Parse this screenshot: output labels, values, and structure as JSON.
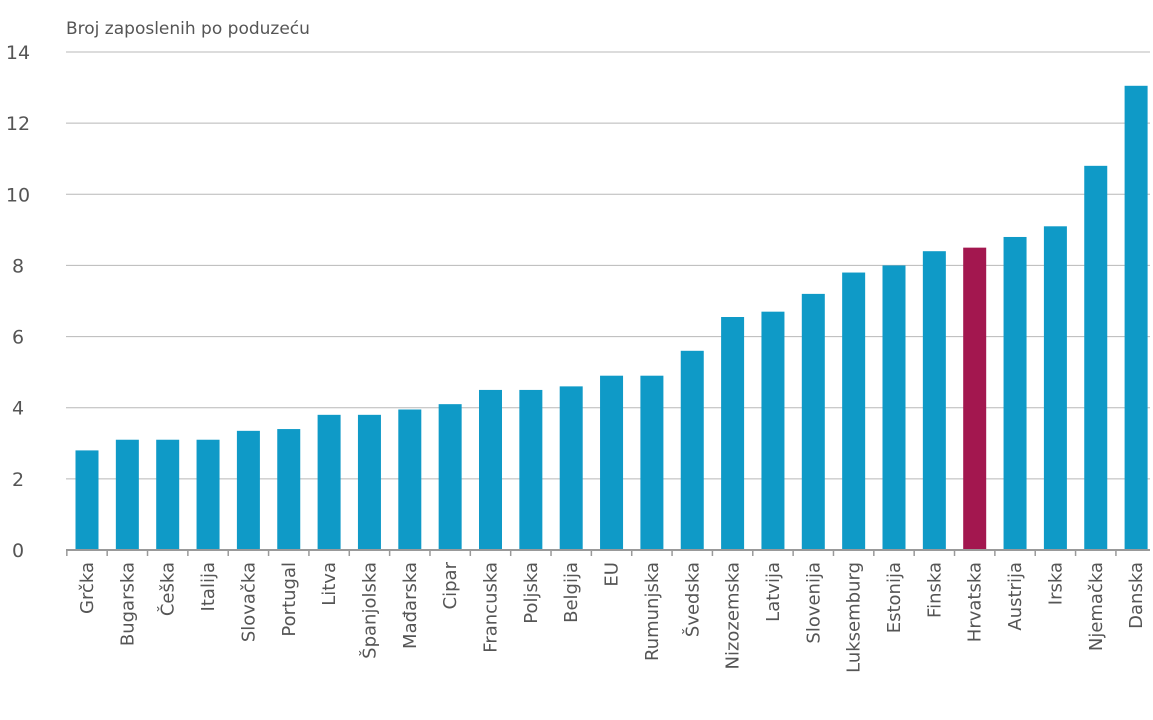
{
  "chart_data": {
    "type": "bar",
    "title": "Broj zaposlenih po poduzeću",
    "xlabel": "",
    "ylabel": "",
    "ylim": [
      0,
      14
    ],
    "y_ticks": [
      "0",
      "2",
      "4",
      "6",
      "8",
      "10",
      "12",
      "14"
    ],
    "grid": true,
    "categories": [
      "Grčka",
      "Bugarska",
      "Češka",
      "Italija",
      "Slovačka",
      "Portugal",
      "Litva",
      "Španjolska",
      "Mađarska",
      "Cipar",
      "Francuska",
      "Poljska",
      "Belgija",
      "EU",
      "Rumunjska",
      "Švedska",
      "Nizozemska",
      "Latvija",
      "Slovenija",
      "Luksemburg",
      "Estonija",
      "Finska",
      "Hrvatska",
      "Austrija",
      "Irska",
      "Njemačka",
      "Danska"
    ],
    "values": [
      2.8,
      3.1,
      3.1,
      3.1,
      3.35,
      3.4,
      3.8,
      3.8,
      3.95,
      4.1,
      4.5,
      4.5,
      4.6,
      4.9,
      4.9,
      5.6,
      6.55,
      6.7,
      7.2,
      7.8,
      8.0,
      8.4,
      8.5,
      8.8,
      9.1,
      10.8,
      13.05
    ],
    "colors": {
      "default": "#0f9ac7",
      "highlight": "#a3174f",
      "highlight_category": "Hrvatska"
    }
  }
}
